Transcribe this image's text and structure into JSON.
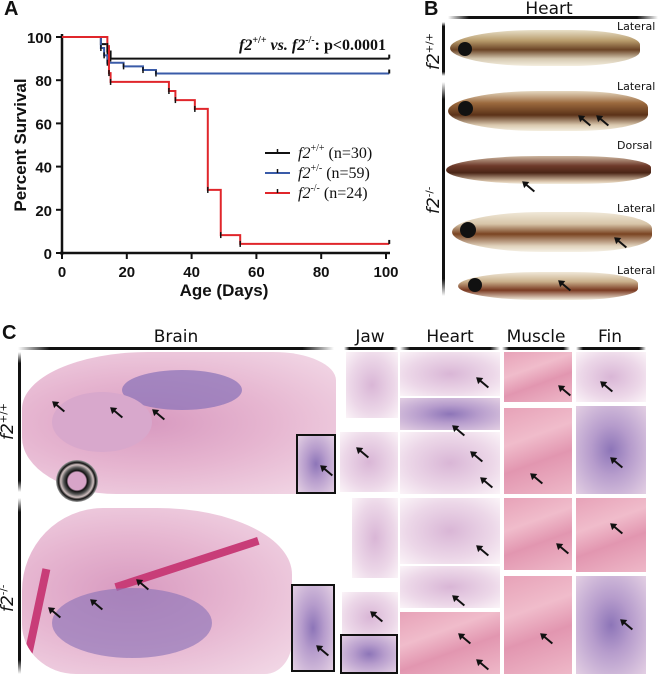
{
  "panels": {
    "a": {
      "letter": "A"
    },
    "b": {
      "letter": "B",
      "header": "Heart",
      "row_labels": [
        {
          "base": "f2",
          "sup": "+/+"
        },
        {
          "base": "f2",
          "sup": "-/-"
        }
      ],
      "views": [
        "Lateral",
        "Lateral",
        "Dorsal",
        "Lateral",
        "Lateral"
      ]
    },
    "c": {
      "letter": "C",
      "headers": [
        "Brain",
        "Jaw",
        "Heart",
        "Muscle",
        "Fin"
      ],
      "row_labels": [
        {
          "base": "f2",
          "sup": "+/+"
        },
        {
          "base": "f2",
          "sup": "-/-"
        }
      ]
    }
  },
  "chart_data": {
    "type": "line",
    "subtype": "kaplan-meier step",
    "title": "",
    "annotation": {
      "left": "f2",
      "left_sup": "+/+",
      "vs": " vs. ",
      "right": "f2",
      "right_sup": "-/-",
      "stat": ": p<0.0001"
    },
    "xlabel": "Age (Days)",
    "ylabel": "Percent Survival",
    "xlim": [
      0,
      100
    ],
    "ylim": [
      0,
      100
    ],
    "xticks": [
      0,
      20,
      40,
      60,
      80,
      100
    ],
    "yticks": [
      0,
      20,
      40,
      60,
      80,
      100
    ],
    "grid": false,
    "legend_position": "center-right",
    "series": [
      {
        "name": "f2+/+",
        "label_base": "f2",
        "label_sup": "+/+",
        "n_label": "(n=30)",
        "color": "#111111",
        "steps": [
          [
            0,
            100
          ],
          [
            12,
            96.7
          ],
          [
            14,
            93.3
          ],
          [
            15,
            90
          ],
          [
            101,
            90
          ]
        ]
      },
      {
        "name": "f2+/-",
        "label_base": "f2",
        "label_sup": "+/-",
        "n_label": "(n=59)",
        "color": "#3a5ba8",
        "steps": [
          [
            0,
            100
          ],
          [
            12,
            94.9
          ],
          [
            13,
            91.5
          ],
          [
            14,
            88.1
          ],
          [
            19,
            86.4
          ],
          [
            25,
            84.7
          ],
          [
            29,
            83.1
          ],
          [
            101,
            83.1
          ]
        ]
      },
      {
        "name": "f2-/-",
        "label_base": "f2",
        "label_sup": "-/-",
        "n_label": "(n=24)",
        "color": "#e0262b",
        "steps": [
          [
            0,
            100
          ],
          [
            14,
            95.8
          ],
          [
            14.5,
            83.3
          ],
          [
            15,
            79.2
          ],
          [
            33,
            75
          ],
          [
            35,
            70.8
          ],
          [
            41,
            66.7
          ],
          [
            45,
            29.2
          ],
          [
            49,
            8.3
          ],
          [
            55,
            4.2
          ],
          [
            101,
            4.2
          ]
        ]
      }
    ]
  }
}
